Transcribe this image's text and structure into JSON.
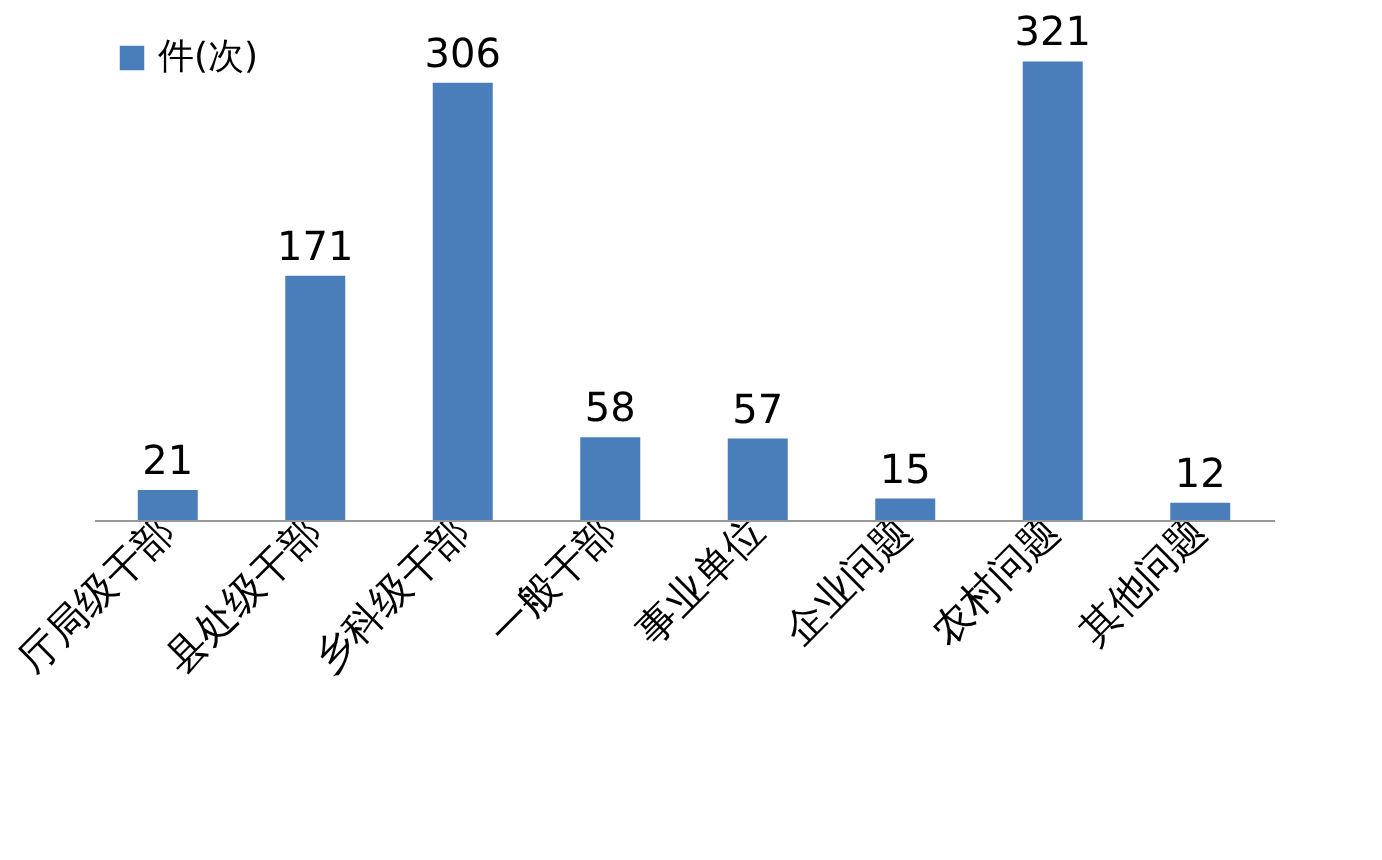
{
  "chart_data": {
    "type": "bar",
    "categories": [
      "厅局级干部",
      "县处级干部",
      "乡科级干部",
      "一般干部",
      "事业单位",
      "企业问题",
      "农村问题",
      "其他问题"
    ],
    "series": [
      {
        "name": "件(次)",
        "color": "#4a7ebb",
        "values": [
          21,
          171,
          306,
          58,
          57,
          15,
          321,
          12
        ]
      }
    ],
    "data_labels": true,
    "legend": "top left",
    "grid": false
  }
}
